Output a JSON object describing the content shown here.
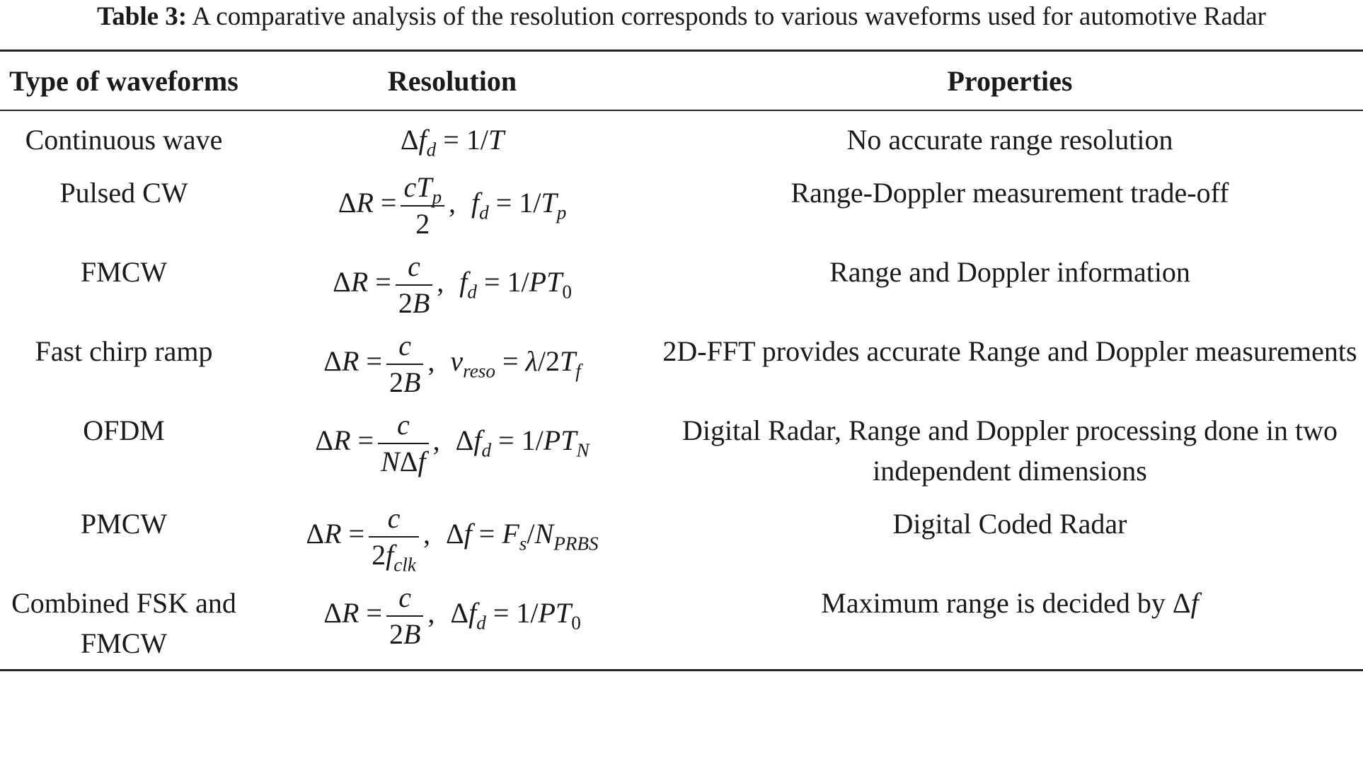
{
  "caption": {
    "label": "Table 3:",
    "text": "A comparative analysis of the resolution corresponds to various waveforms used for automotive Radar"
  },
  "table": {
    "headers": {
      "type": "Type of waveforms",
      "resolution": "Resolution",
      "properties": "Properties"
    },
    "rows": [
      {
        "type": "Continuous wave",
        "resolution": "Δf_d = 1/T",
        "properties": "No accurate range resolution"
      },
      {
        "type": "Pulsed CW",
        "resolution": "ΔR = cT_p/2, f_d = 1/T_p",
        "properties": "Range-Doppler measurement trade-off"
      },
      {
        "type": "FMCW",
        "resolution": "ΔR = c/2B, f_d = 1/PT_0",
        "properties": "Range and Doppler information"
      },
      {
        "type": "Fast chirp ramp",
        "resolution": "ΔR = c/2B, v_reso = λ/2T_f",
        "properties": "2D-FFT provides accurate Range and Doppler measurements"
      },
      {
        "type": "OFDM",
        "resolution": "ΔR = c/NΔf, Δf_d = 1/PT_N",
        "properties": "Digital Radar, Range and Doppler processing done in two independent dimensions"
      },
      {
        "type": "PMCW",
        "resolution": "ΔR = c/2f_clk, Δf = F_s/N_PRBS",
        "properties": "Digital Coded Radar"
      },
      {
        "type": "Combined FSK and FMCW",
        "resolution": "ΔR = c/2B, Δf_d = 1/PT_0",
        "properties": "Maximum range is decided by Δf"
      }
    ]
  }
}
